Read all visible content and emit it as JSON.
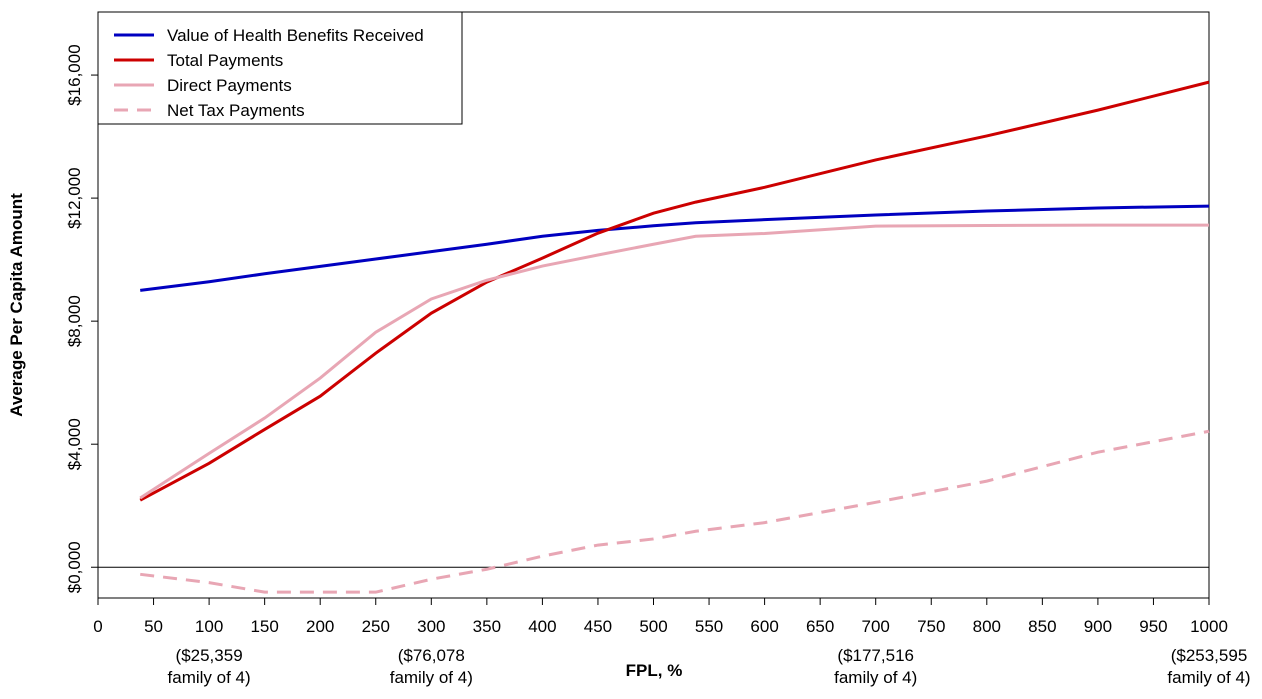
{
  "chart_data": {
    "type": "line",
    "x_label": "FPL, %",
    "y_label": "Average Per Capita Amount",
    "x": [
      38,
      100,
      150,
      200,
      250,
      300,
      350,
      400,
      450,
      500,
      538,
      600,
      700,
      800,
      900,
      1000
    ],
    "series": [
      {
        "name": "Value of Health Benefits Received",
        "color": "#0000c0",
        "dash": false,
        "values": [
          9000,
          9280,
          9540,
          9780,
          10020,
          10260,
          10500,
          10760,
          10950,
          11100,
          11200,
          11300,
          11450,
          11580,
          11680,
          11740
        ]
      },
      {
        "name": "Total Payments",
        "color": "#cc0000",
        "dash": false,
        "values": [
          2180,
          3380,
          4480,
          5560,
          6960,
          8260,
          9270,
          10050,
          10860,
          11510,
          11870,
          12350,
          13240,
          14020,
          14860,
          15770
        ]
      },
      {
        "name": "Direct Payments",
        "color": "#e8a6b4",
        "dash": false,
        "values": [
          2250,
          3700,
          4850,
          6150,
          7640,
          8720,
          9330,
          9790,
          10150,
          10500,
          10760,
          10850,
          11090,
          11110,
          11120,
          11120
        ]
      },
      {
        "name": "Net Tax Payments",
        "color": "#e8a6b4",
        "dash": true,
        "values": [
          -230,
          -500,
          -810,
          -810,
          -810,
          -390,
          -65,
          360,
          720,
          920,
          1170,
          1450,
          2110,
          2800,
          3740,
          4420
        ]
      }
    ],
    "xlim": [
      0,
      1000
    ],
    "ylim": [
      -1000,
      18050
    ],
    "xticks": [
      0,
      50,
      100,
      150,
      200,
      250,
      300,
      350,
      400,
      450,
      500,
      550,
      600,
      650,
      700,
      750,
      800,
      850,
      900,
      950,
      1000
    ],
    "yticks": [
      {
        "value": 0,
        "label": "$0,000"
      },
      {
        "value": 4000,
        "label": "$4,000"
      },
      {
        "value": 8000,
        "label": "$8,000"
      },
      {
        "value": 12000,
        "label": "$12,000"
      },
      {
        "value": 16000,
        "label": "$16,000"
      }
    ],
    "hline": 0,
    "annotations": [
      {
        "x": 100,
        "lines": [
          "($25,359",
          "family of 4)"
        ]
      },
      {
        "x": 300,
        "lines": [
          "($76,078",
          "family of 4)"
        ]
      },
      {
        "x": 700,
        "lines": [
          "($177,516",
          "family of 4)"
        ]
      },
      {
        "x": 1000,
        "lines": [
          "($253,595",
          "family of 4)"
        ]
      }
    ],
    "legend": "top-left"
  }
}
